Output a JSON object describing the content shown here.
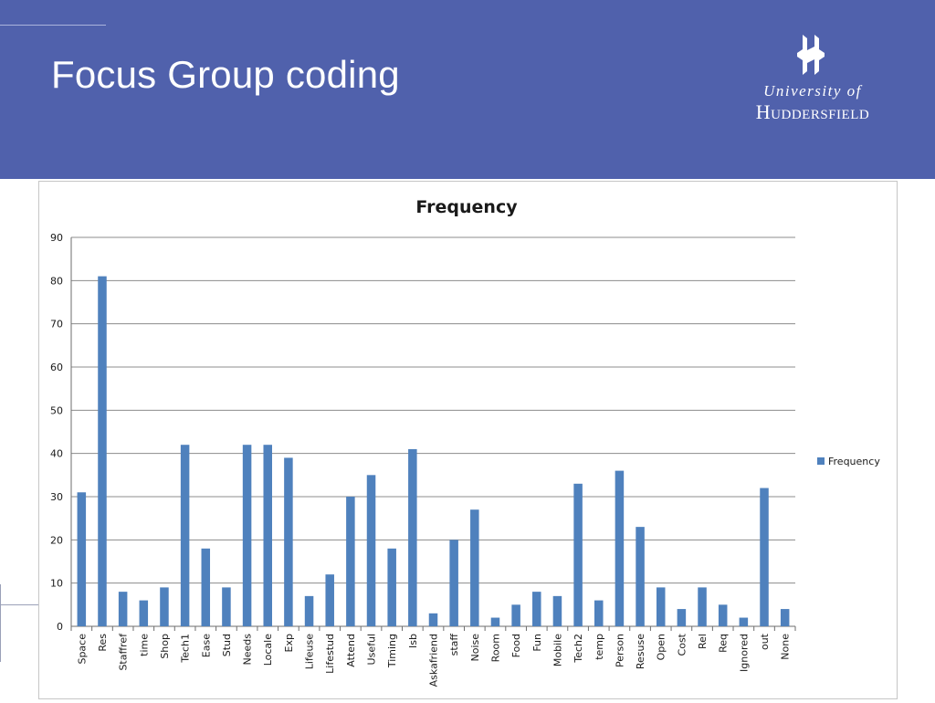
{
  "slide": {
    "title": "Focus Group coding"
  },
  "logo": {
    "line1": "University of",
    "line2": "Huddersfield"
  },
  "colors": {
    "header_bg": "#5061ac",
    "bar": "#4f81bd",
    "gridline": "#8c8c8c"
  },
  "chart_data": {
    "type": "bar",
    "title": "Frequency",
    "xlabel": "",
    "ylabel": "",
    "ylim": [
      0,
      90
    ],
    "yticks": [
      0,
      10,
      20,
      30,
      40,
      50,
      60,
      70,
      80,
      90
    ],
    "grid": true,
    "legend_position": "right",
    "categories": [
      "Space",
      "Res",
      "Staffref",
      "time",
      "Shop",
      "Tech1",
      "Ease",
      "Stud",
      "Needs",
      "Locale",
      "Exp",
      "Lifeuse",
      "Lifestud",
      "Attend",
      "Useful",
      "Timing",
      "Isb",
      "Askafriend",
      "staff",
      "Noise",
      "Room",
      "Food",
      "Fun",
      "Mobile",
      "Tech2",
      "temp",
      "Person",
      "Resuse",
      "Open",
      "Cost",
      "Rel",
      "Req",
      "Ignored",
      "out",
      "None"
    ],
    "series": [
      {
        "name": "Frequency",
        "values": [
          31,
          81,
          8,
          6,
          9,
          42,
          18,
          9,
          42,
          42,
          39,
          7,
          12,
          30,
          35,
          18,
          41,
          3,
          20,
          27,
          2,
          5,
          8,
          7,
          33,
          6,
          36,
          23,
          9,
          4,
          9,
          5,
          2,
          32,
          4
        ]
      }
    ]
  }
}
